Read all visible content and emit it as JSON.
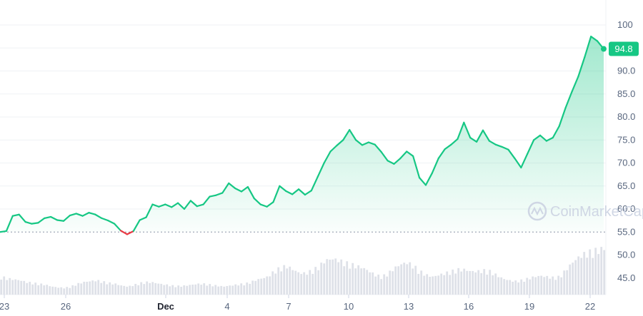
{
  "chart_data": {
    "type": "area",
    "y_ticks": [
      "100",
      "95.0",
      "90.0",
      "85.0",
      "80.0",
      "75.0",
      "70.0",
      "65.0",
      "60.0",
      "55.0",
      "50.0",
      "45.0"
    ],
    "x_ticks": [
      "23",
      "26",
      "Dec",
      "4",
      "7",
      "10",
      "13",
      "16",
      "19",
      "22"
    ],
    "ylim": [
      45,
      100
    ],
    "baseline": 55.0,
    "current_price_label": "94.8",
    "current_price": 94.8,
    "grid": true,
    "colors": {
      "up": "#16c784",
      "down": "#ea3943",
      "tag": "#16c784",
      "watermark": "#cfd6e4"
    },
    "watermark": "CoinMarketCap",
    "series": [
      {
        "values": [
          55.0,
          55.2,
          58.5,
          58.8,
          57.2,
          56.8,
          57.0,
          58.0,
          58.3,
          57.6,
          57.4,
          58.6,
          59.0,
          58.5,
          59.2,
          58.8,
          58.0,
          57.5,
          56.8,
          55.3,
          54.5,
          55.2,
          57.6,
          58.2,
          61.0,
          60.5,
          61.0,
          60.4,
          61.3,
          60.0,
          61.8,
          60.6,
          61.0,
          62.7,
          63.0,
          63.5,
          65.6,
          64.5,
          63.8,
          64.8,
          62.3,
          61.0,
          60.5,
          61.5,
          65.0,
          63.9,
          63.2,
          64.3,
          63.1,
          64.0,
          67.0,
          70.0,
          72.5,
          73.8,
          75.0,
          77.2,
          75.0,
          73.9,
          74.5,
          74.0,
          72.4,
          70.5,
          69.8,
          71.0,
          72.5,
          71.5,
          66.8,
          65.2,
          67.8,
          71.0,
          73.0,
          74.0,
          75.2,
          78.8,
          75.5,
          74.6,
          77.1,
          74.8,
          74.0,
          73.5,
          72.9,
          71.0,
          69.0,
          72.0,
          75.0,
          76.0,
          74.8,
          75.5,
          78.0,
          82.0,
          85.5,
          88.8,
          93.0,
          97.5,
          96.5,
          94.8
        ]
      }
    ],
    "volume_bars": [
      1.0,
      0.9,
      0.85,
      0.8,
      0.7,
      0.65,
      0.6,
      0.55,
      0.45,
      0.4,
      0.38,
      0.45,
      0.6,
      0.7,
      0.75,
      0.8,
      0.72,
      0.65,
      0.6,
      0.5,
      0.45,
      0.55,
      0.65,
      0.7,
      0.68,
      0.6,
      0.55,
      0.5,
      0.48,
      0.5,
      0.55,
      0.6,
      0.6,
      0.55,
      0.5,
      0.45,
      0.5,
      0.55,
      0.6,
      0.65,
      0.8,
      0.9,
      1.0,
      1.3,
      1.5,
      1.6,
      1.4,
      1.2,
      1.2,
      1.35,
      1.55,
      1.9,
      2.0,
      1.95,
      1.8,
      1.7,
      1.6,
      1.5,
      1.3,
      1.1,
      1.0,
      1.2,
      1.5,
      1.7,
      1.8,
      1.6,
      1.3,
      1.1,
      1.0,
      1.1,
      1.2,
      1.3,
      1.4,
      1.4,
      1.3,
      1.3,
      1.35,
      1.3,
      1.1,
      0.9,
      0.8,
      0.75,
      0.8,
      0.9,
      1.0,
      1.05,
      1.0,
      0.95,
      1.0,
      1.4,
      1.8,
      2.1,
      2.3,
      2.4,
      2.5,
      2.6
    ]
  }
}
